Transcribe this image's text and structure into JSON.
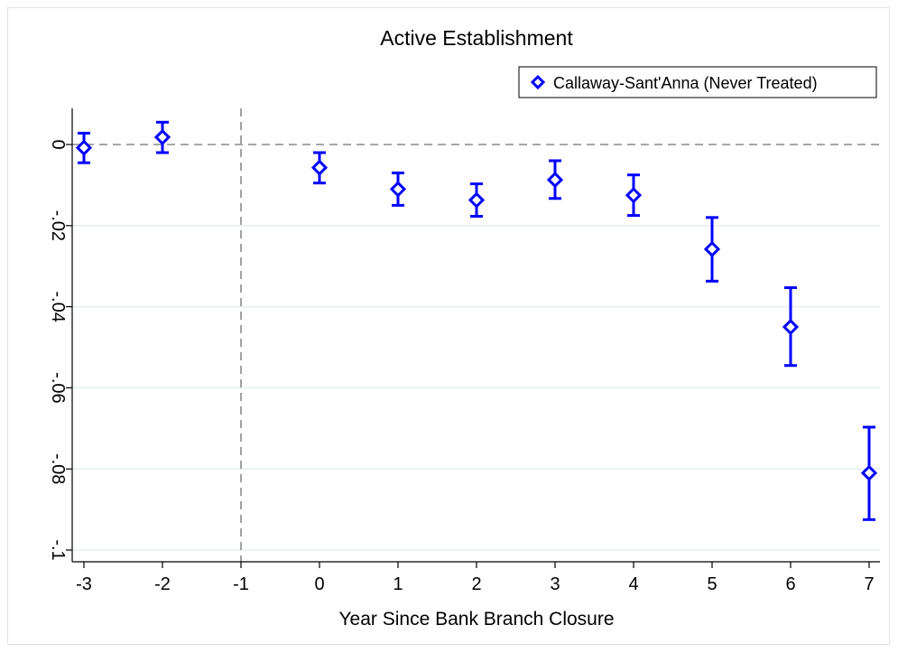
{
  "chart_data": {
    "type": "scatter",
    "title": "Active Establishment",
    "xlabel": "Year Since Bank Branch Closure",
    "ylabel": "",
    "x_ticks": [
      "-3",
      "-2",
      "-1",
      "0",
      "1",
      "2",
      "3",
      "4",
      "5",
      "6",
      "7"
    ],
    "y_ticks": [
      "0",
      "-.02",
      "-.04",
      "-.06",
      "-.08",
      "-.1"
    ],
    "y_tick_values": [
      0,
      -0.02,
      -0.04,
      -0.06,
      -0.08,
      -0.1
    ],
    "xlim": [
      -3,
      7
    ],
    "ylim": [
      -0.1,
      0
    ],
    "grid": "horizontal",
    "reference_lines": {
      "x": -1,
      "y": 0
    },
    "legend_position": "top-right",
    "series": [
      {
        "name": "Callaway-Sant'Anna (Never Treated)",
        "color": "#0000ff",
        "marker": "diamond-open",
        "points": [
          {
            "x": -3,
            "y": -0.0008,
            "lo": -0.0045,
            "hi": 0.0028
          },
          {
            "x": -2,
            "y": 0.0018,
            "lo": -0.002,
            "hi": 0.0055
          },
          {
            "x": 0,
            "y": -0.0057,
            "lo": -0.0095,
            "hi": -0.002
          },
          {
            "x": 1,
            "y": -0.011,
            "lo": -0.015,
            "hi": -0.007
          },
          {
            "x": 2,
            "y": -0.0137,
            "lo": -0.0177,
            "hi": -0.0097
          },
          {
            "x": 3,
            "y": -0.0087,
            "lo": -0.0133,
            "hi": -0.004
          },
          {
            "x": 4,
            "y": -0.0125,
            "lo": -0.0175,
            "hi": -0.0075
          },
          {
            "x": 5,
            "y": -0.0258,
            "lo": -0.0337,
            "hi": -0.018
          },
          {
            "x": 6,
            "y": -0.045,
            "lo": -0.0545,
            "hi": -0.0353
          },
          {
            "x": 7,
            "y": -0.081,
            "lo": -0.0925,
            "hi": -0.0697
          }
        ]
      }
    ]
  }
}
